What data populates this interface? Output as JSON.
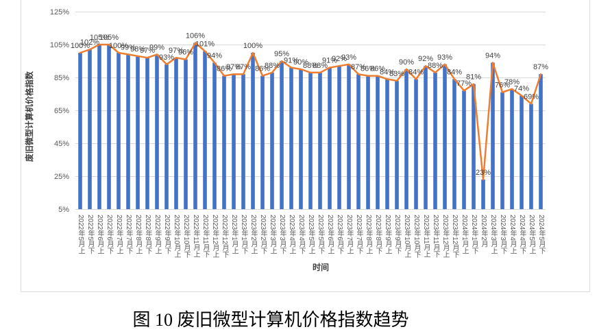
{
  "figure": {
    "caption": "图 10 废旧微型计算机价格指数趋势"
  },
  "chart_data": {
    "type": "bar",
    "line_overlay": true,
    "xlabel": "时间",
    "ylabel": "废旧微型计算机价格指数",
    "ylim": [
      5,
      125
    ],
    "yticks": [
      5,
      25,
      45,
      65,
      85,
      105,
      125
    ],
    "value_unit": "%",
    "grid": true,
    "data_labels": true,
    "legend": "none",
    "categories": [
      "2022年5月上",
      "2022年5月下",
      "2022年6月上",
      "2022年6月下",
      "2022年7月上",
      "2022年7月下",
      "2022年8月上",
      "2022年8月下",
      "2022年9月上",
      "2022年9月下",
      "2022年10月上",
      "2022年10月下",
      "2022年11月上",
      "2022年11月下",
      "2022年12月上",
      "2022年12月下",
      "2023年1月上",
      "2023年1月下",
      "2023年2月上",
      "2023年2月下",
      "2023年3月上",
      "2023年3月下",
      "2023年4月上",
      "2023年4月下",
      "2023年5月上",
      "2023年5月下",
      "2023年6月上",
      "2023年6月下",
      "2023年7月上",
      "2023年7月下",
      "2023年8月上",
      "2023年8月下",
      "2023年9月上",
      "2023年9月下",
      "2023年10月上",
      "2023年10月下",
      "2023年11月上",
      "2023年11月下",
      "2023年12月上",
      "2023年12月下",
      "2024年1月上",
      "2024年1月下",
      "2024年2月",
      "2024年3月上",
      "2024年3月下",
      "2024年4月上",
      "2024年4月下",
      "2024年5月上",
      "2024年5月下"
    ],
    "values": [
      100,
      102,
      105,
      105,
      100,
      99,
      98,
      97,
      99,
      93,
      97,
      96,
      106,
      101,
      94,
      86,
      87,
      87,
      100,
      86,
      88,
      95,
      91,
      90,
      88,
      88,
      91,
      92,
      93,
      87,
      86,
      86,
      84,
      83,
      90,
      84,
      92,
      88,
      93,
      84,
      77,
      81,
      23,
      94,
      76,
      78,
      74,
      69,
      87
    ],
    "colors": {
      "bar": "#4472C4",
      "line": "#ED7D31",
      "grid": "#D9D9D9",
      "frame": "#D9D9D9"
    }
  }
}
